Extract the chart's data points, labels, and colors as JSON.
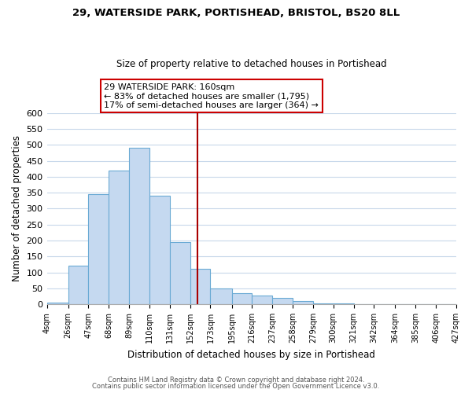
{
  "title1": "29, WATERSIDE PARK, PORTISHEAD, BRISTOL, BS20 8LL",
  "title2": "Size of property relative to detached houses in Portishead",
  "xlabel": "Distribution of detached houses by size in Portishead",
  "ylabel": "Number of detached properties",
  "bin_edges": [
    4,
    26,
    47,
    68,
    89,
    110,
    131,
    152,
    173,
    195,
    216,
    237,
    258,
    279,
    300,
    321,
    342,
    364,
    385,
    406,
    427
  ],
  "bin_labels": [
    "4sqm",
    "26sqm",
    "47sqm",
    "68sqm",
    "89sqm",
    "110sqm",
    "131sqm",
    "152sqm",
    "173sqm",
    "195sqm",
    "216sqm",
    "237sqm",
    "258sqm",
    "279sqm",
    "300sqm",
    "321sqm",
    "342sqm",
    "364sqm",
    "385sqm",
    "406sqm",
    "427sqm"
  ],
  "counts": [
    5,
    120,
    345,
    420,
    490,
    340,
    195,
    112,
    50,
    35,
    28,
    20,
    9,
    3,
    2,
    1,
    1,
    0,
    0,
    0
  ],
  "bar_color": "#c5d9f0",
  "bar_edge_color": "#6aaad4",
  "vline_x": 160,
  "vline_color": "#aa0000",
  "annotation_box_text": "29 WATERSIDE PARK: 160sqm\n← 83% of detached houses are smaller (1,795)\n17% of semi-detached houses are larger (364) →",
  "annotation_box_color": "#ffffff",
  "annotation_box_edge_color": "#cc0000",
  "ylim": [
    0,
    600
  ],
  "yticks": [
    0,
    50,
    100,
    150,
    200,
    250,
    300,
    350,
    400,
    450,
    500,
    550,
    600
  ],
  "footer1": "Contains HM Land Registry data © Crown copyright and database right 2024.",
  "footer2": "Contains public sector information licensed under the Open Government Licence v3.0.",
  "bg_color": "#ffffff",
  "grid_color": "#c8d8ea"
}
